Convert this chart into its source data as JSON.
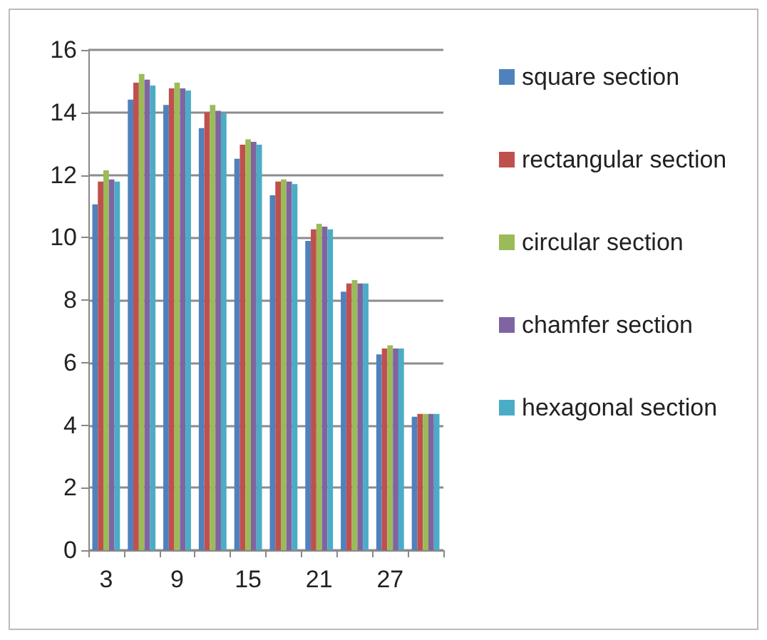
{
  "chart_data": {
    "type": "bar",
    "categories": [
      "3",
      null,
      "9",
      null,
      "15",
      null,
      "21",
      null,
      "27",
      null
    ],
    "series": [
      {
        "name": "square section",
        "color": "#4f81bd",
        "values": [
          11.06,
          14.41,
          14.24,
          13.5,
          12.52,
          11.35,
          9.89,
          8.27,
          6.26,
          4.27
        ]
      },
      {
        "name": "rectangular section",
        "color": "#c0504d",
        "values": [
          11.79,
          14.95,
          14.77,
          14.0,
          12.97,
          11.79,
          10.26,
          8.53,
          6.45,
          4.36
        ]
      },
      {
        "name": "circular section",
        "color": "#9bbb59",
        "values": [
          12.15,
          15.23,
          14.95,
          14.24,
          13.14,
          11.86,
          10.44,
          8.64,
          6.55,
          4.36
        ]
      },
      {
        "name": "chamfer section",
        "color": "#8064a2",
        "values": [
          11.86,
          15.05,
          14.77,
          14.05,
          13.06,
          11.79,
          10.35,
          8.53,
          6.45,
          4.36
        ]
      },
      {
        "name": "hexagonal section",
        "color": "#4bacc6",
        "values": [
          11.79,
          14.86,
          14.7,
          13.97,
          12.97,
          11.71,
          10.26,
          8.53,
          6.45,
          4.36
        ]
      }
    ],
    "ylim": [
      0,
      16
    ],
    "yticks": [
      0,
      2,
      4,
      6,
      8,
      10,
      12,
      14,
      16
    ],
    "grid": "y",
    "legend": "right"
  }
}
